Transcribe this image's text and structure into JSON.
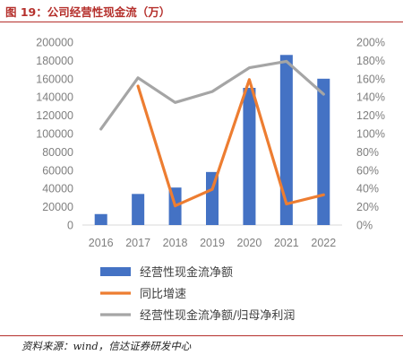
{
  "header": {
    "title": "图 19：公司经营性现金流（万）"
  },
  "footer": {
    "source": "资料来源：wind，信达证券研发中心"
  },
  "chart_data": {
    "type": "bar",
    "categories": [
      "2016",
      "2017",
      "2018",
      "2019",
      "2020",
      "2021",
      "2022"
    ],
    "series": [
      {
        "name": "经营性现金流净额",
        "kind": "bar",
        "axis": "left",
        "color": "#4472c4",
        "values": [
          12000,
          34000,
          41000,
          58000,
          150000,
          186000,
          160000
        ]
      },
      {
        "name": "同比增速",
        "kind": "line",
        "axis": "right",
        "color": "#ed7d31",
        "values": [
          null,
          1.52,
          0.21,
          0.39,
          1.59,
          0.23,
          0.33
        ]
      },
      {
        "name": "经营性现金流净额/归母净利润",
        "kind": "line",
        "axis": "right",
        "color": "#a5a5a5",
        "values": [
          1.05,
          1.61,
          1.34,
          1.46,
          1.72,
          1.79,
          1.43
        ]
      }
    ],
    "y_left": {
      "min": 0,
      "max": 200000,
      "ticks": [
        "0",
        "20000",
        "40000",
        "60000",
        "80000",
        "100000",
        "120000",
        "140000",
        "160000",
        "180000",
        "200000"
      ]
    },
    "y_right": {
      "min": 0,
      "max": 2,
      "ticks": [
        "0%",
        "20%",
        "40%",
        "60%",
        "80%",
        "100%",
        "120%",
        "140%",
        "160%",
        "180%",
        "200%"
      ]
    },
    "grid": false,
    "legend_position": "bottom"
  }
}
